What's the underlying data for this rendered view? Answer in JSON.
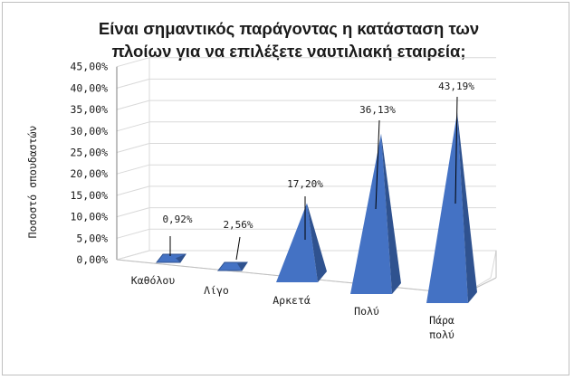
{
  "chart_data": {
    "type": "bar",
    "shape": "3d-pyramid",
    "title": "Είναι σημαντικός παράγοντας η κατάσταση των πλοίων για να επιλέξετε ναυτιλιακή εταιρεία;",
    "title_lines": [
      "Είναι σημαντικός παράγοντας η κατάσταση των",
      "πλοίων για να επιλέξετε ναυτιλιακή εταιρεία;"
    ],
    "ylabel": "Ποσοστό σπουδαστών",
    "xlabel": "",
    "categories": [
      "Καθόλου",
      "Λίγο",
      "Αρκετά",
      "Πολύ",
      "Πάρα πολύ"
    ],
    "category_lines": [
      [
        "Καθόλου"
      ],
      [
        "Λίγο"
      ],
      [
        "Αρκετά"
      ],
      [
        "Πολύ"
      ],
      [
        "Πάρα",
        "πολύ"
      ]
    ],
    "values": [
      0.92,
      2.56,
      17.2,
      36.13,
      43.19
    ],
    "data_labels": [
      "0,92%",
      "2,56%",
      "17,20%",
      "36,13%",
      "43,19%"
    ],
    "ylim": [
      0,
      45
    ],
    "yticks": [
      "0,00%",
      "5,00%",
      "10,00%",
      "15,00%",
      "20,00%",
      "25,00%",
      "30,00%",
      "35,00%",
      "40,00%",
      "45,00%"
    ],
    "grid": true,
    "legend": "none",
    "colors": {
      "front": "#4472C4",
      "side": "#2F528F",
      "grid": "#d9d9d9",
      "axis": "#7f7f7f"
    }
  }
}
